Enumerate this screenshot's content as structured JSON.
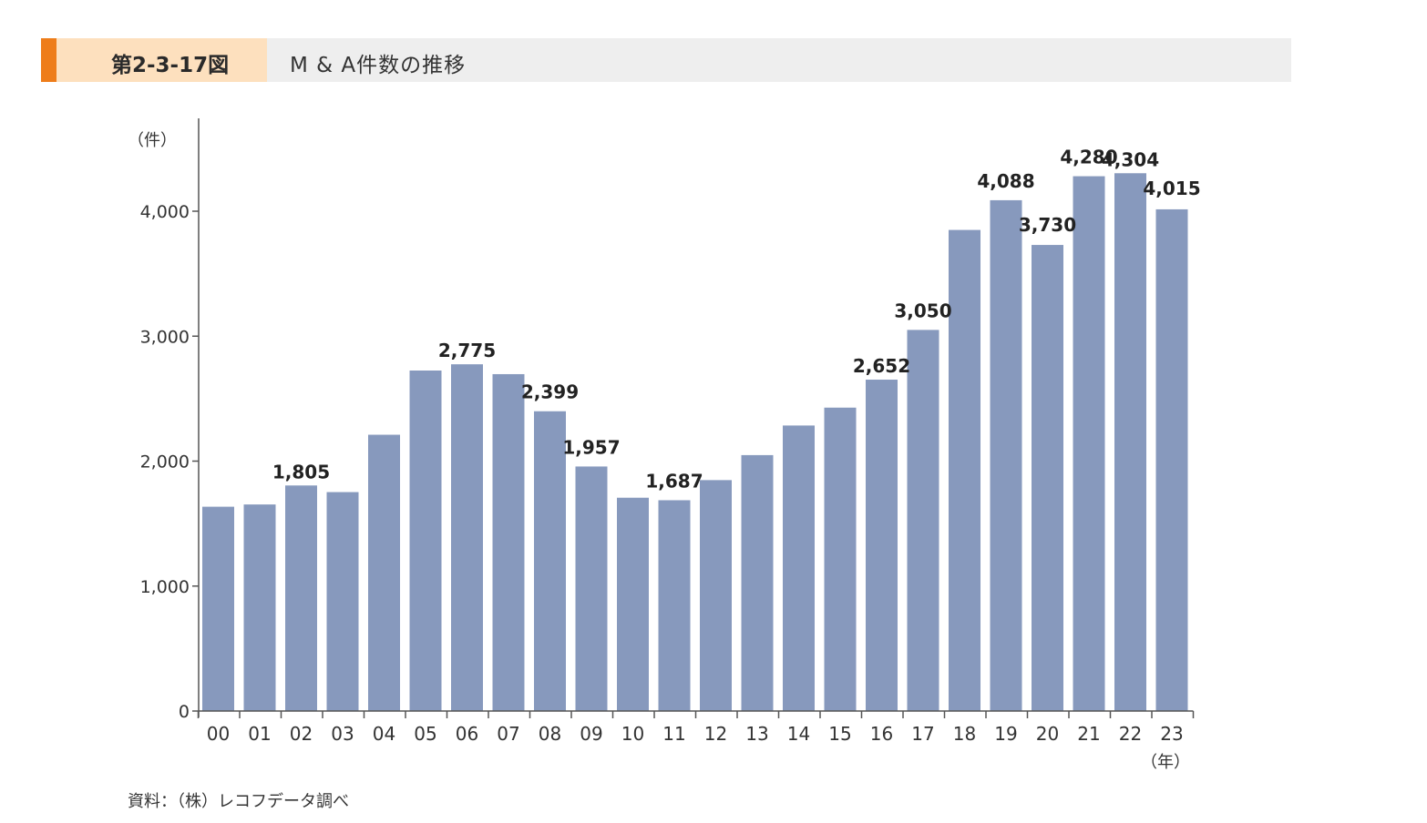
{
  "header": {
    "figure_number": "第2-3-17図",
    "title": "M & A件数の推移"
  },
  "source_note": "資料：（株）レコフデータ調べ",
  "colors": {
    "bar": "#8799bd",
    "accent": "#ee7d1a",
    "number_box": "#fde0be",
    "header_bg": "#eeeeee"
  },
  "chart_data": {
    "type": "bar",
    "title": "M & A件数の推移",
    "ylabel": "（件）",
    "xlabel": "（年）",
    "ylim": [
      0,
      4700
    ],
    "yticks": [
      0,
      1000,
      2000,
      3000,
      4000
    ],
    "ytick_labels": [
      "0",
      "1,000",
      "2,000",
      "3,000",
      "4,000"
    ],
    "grid": false,
    "categories": [
      "00",
      "01",
      "02",
      "03",
      "04",
      "05",
      "06",
      "07",
      "08",
      "09",
      "10",
      "11",
      "12",
      "13",
      "14",
      "15",
      "16",
      "17",
      "18",
      "19",
      "20",
      "21",
      "22",
      "23"
    ],
    "values": [
      1635,
      1653,
      1805,
      1752,
      2211,
      2725,
      2775,
      2696,
      2399,
      1957,
      1707,
      1687,
      1848,
      2048,
      2285,
      2428,
      2652,
      3050,
      3850,
      4088,
      3730,
      4280,
      4304,
      4015
    ],
    "data_labels": {
      "02": "1,805",
      "06": "2,775",
      "08": "2,399",
      "09": "1,957",
      "11": "1,687",
      "16": "2,652",
      "17": "3,050",
      "19": "4,088",
      "20": "3,730",
      "21": "4,280",
      "22": "4,304",
      "23": "4,015"
    }
  }
}
